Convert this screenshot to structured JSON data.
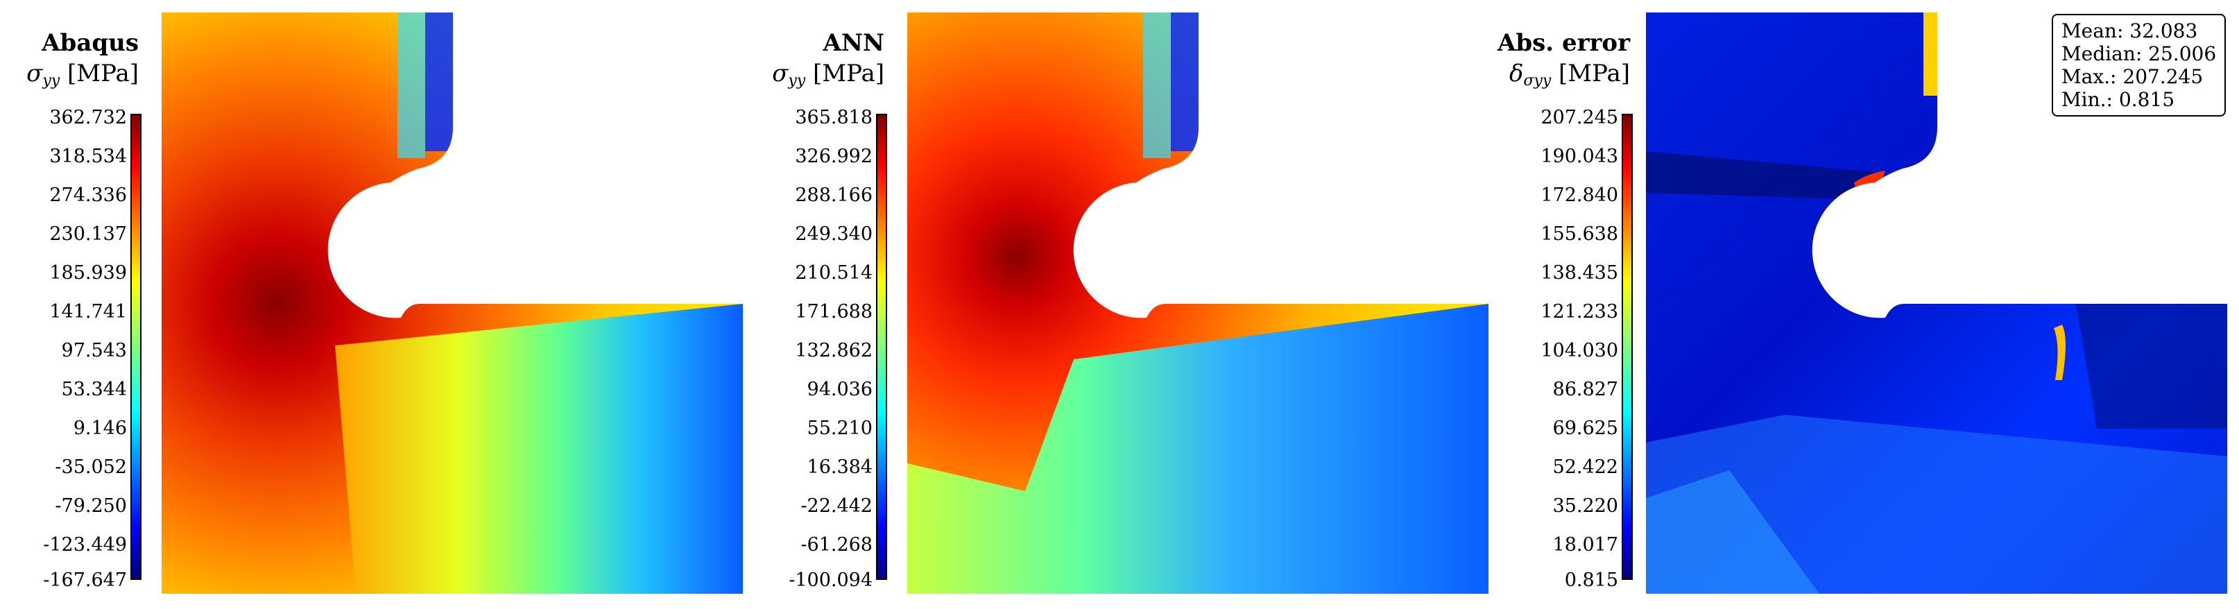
{
  "panels": [
    {
      "title": "Abaqus",
      "symbol": "σ",
      "subscript": "yy",
      "unit": "[MPa]",
      "ticks": [
        "362.732",
        "318.534",
        "274.336",
        "230.137",
        "185.939",
        "141.741",
        "97.543",
        "53.344",
        "9.146",
        "-35.052",
        "-79.250",
        "-123.449",
        "-167.647"
      ]
    },
    {
      "title": "ANN",
      "symbol": "σ",
      "subscript": "yy",
      "unit": "[MPa]",
      "ticks": [
        "365.818",
        "326.992",
        "288.166",
        "249.340",
        "210.514",
        "171.688",
        "132.862",
        "94.036",
        "55.210",
        "16.384",
        "-22.442",
        "-61.268",
        "-100.094"
      ]
    },
    {
      "title": "Abs. error",
      "symbol": "δ",
      "subscript": "σyy",
      "unit": "[MPa]",
      "ticks": [
        "207.245",
        "190.043",
        "172.840",
        "155.638",
        "138.435",
        "121.233",
        "104.030",
        "86.827",
        "69.625",
        "52.422",
        "35.220",
        "18.017",
        "0.815"
      ]
    }
  ],
  "stats": {
    "mean": "Mean: 32.083",
    "median": "Median: 25.006",
    "max": "Max.: 207.245",
    "min": "Min.: 0.815"
  },
  "colormap": "jet"
}
